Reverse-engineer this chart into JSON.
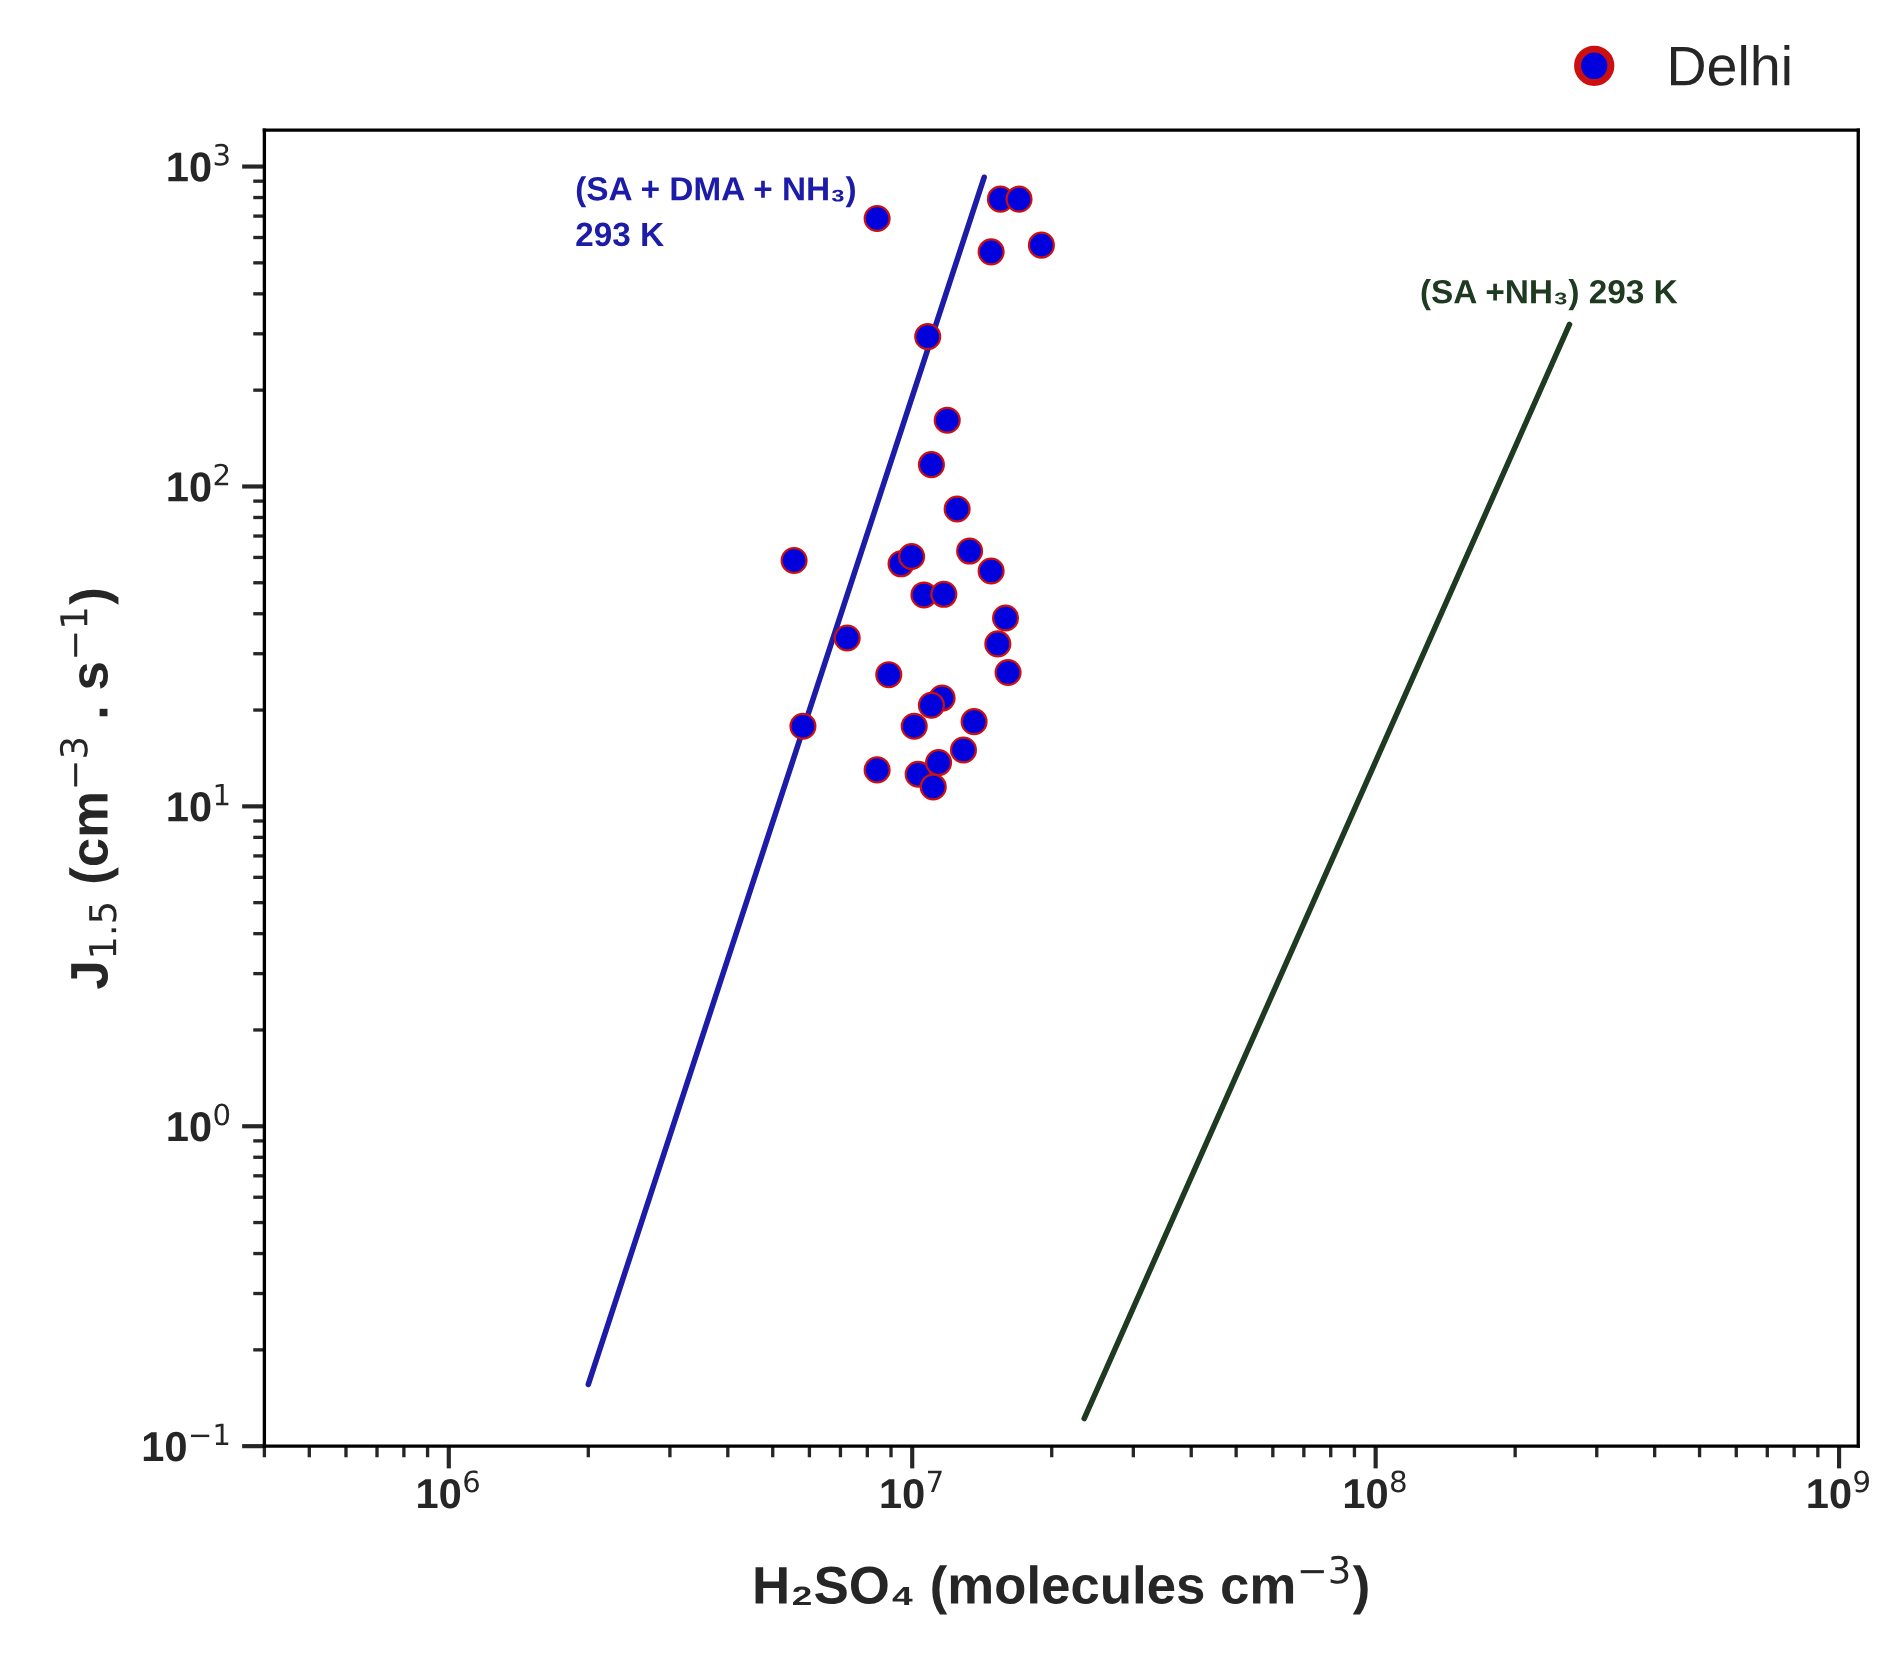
{
  "chart_data": {
    "type": "scatter",
    "xlabel": "H₂SO₄ (molecules cm$^{−3}$)",
    "ylabel": "J$_{1.5}$ (cm$^{−3}$ . s$^{−1}$)",
    "log": "xy",
    "grid": false,
    "legend": "top right",
    "xlim": [
      400000.0,
      1100000000.0
    ],
    "ylim": [
      0.1,
      1300
    ],
    "xticks": [
      {
        "value": 1000000.0,
        "label": "10$^{6}$"
      },
      {
        "value": 10000000.0,
        "label": "10$^{7}$"
      },
      {
        "value": 100000000.0,
        "label": "10$^{8}$"
      },
      {
        "value": 1000000000.0,
        "label": "10$^{9}$"
      }
    ],
    "yticks": [
      {
        "value": 0.1,
        "label": "10$^{−1}$"
      },
      {
        "value": 1,
        "label": "10$^{0}$"
      },
      {
        "value": 10,
        "label": "10$^{1}$"
      },
      {
        "value": 100,
        "label": "10$^{2}$"
      },
      {
        "value": 1000,
        "label": "10$^{3}$"
      }
    ],
    "series": [
      {
        "name": "Delhi",
        "type": "scatter",
        "marker": "circle",
        "color": "#0000dd",
        "x": [
          8400000.0,
          15500000.0,
          17000000.0,
          14800000.0,
          19000000.0,
          10800000.0,
          11900000.0,
          11000000.0,
          12500000.0,
          5560000.0,
          9460000.0,
          9970000.0,
          13300000.0,
          14800000.0,
          10600000.0,
          11700000.0,
          15900000.0,
          15300000.0,
          16100000.0,
          7240000.0,
          8900000.0,
          11600000.0,
          11000000.0,
          5810000.0,
          10100000.0,
          13600000.0,
          12900000.0,
          8400000.0,
          10300000.0,
          11400000.0,
          11100000.0
        ],
        "values": [
          688,
          791,
          791,
          541,
          568,
          294,
          161,
          117,
          85,
          58.7,
          57.3,
          60.4,
          62.8,
          54.4,
          45.8,
          46,
          38.8,
          32.2,
          26.2,
          33.6,
          25.8,
          21.8,
          20.7,
          17.8,
          17.8,
          18.4,
          15.0,
          13.0,
          12.6,
          13.7,
          11.5
        ]
      },
      {
        "type": "line",
        "color": "#1c1ca8",
        "x": [
          2000000.0,
          14300000.0
        ],
        "values": [
          0.156,
          926
        ]
      },
      {
        "type": "line",
        "color": "#1e3a20",
        "x": [
          23500000.0,
          262000000.0
        ],
        "values": [
          0.122,
          321
        ]
      }
    ],
    "annotations": [
      "(SA + DMA + NH₃)\n293 K",
      "(SA +NH₃) 293 K"
    ]
  }
}
